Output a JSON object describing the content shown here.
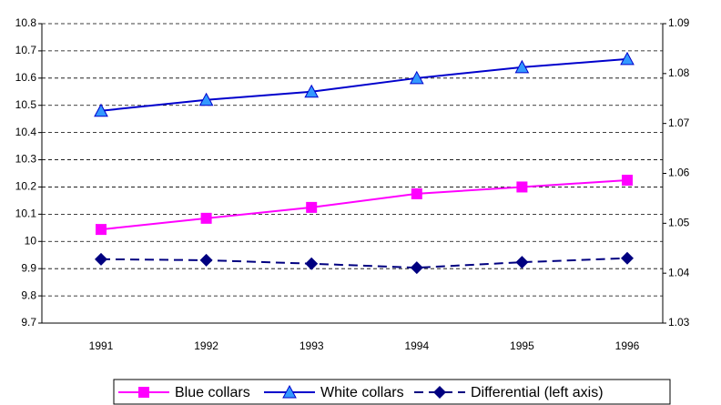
{
  "chart_data": {
    "type": "line",
    "categories": [
      "1991",
      "1992",
      "1993",
      "1994",
      "1995",
      "1996"
    ],
    "series": [
      {
        "name": "Blue collars",
        "color": "#ff00ff",
        "marker": "square",
        "dash": false,
        "values": [
          10.044,
          10.085,
          10.125,
          10.175,
          10.2,
          10.225
        ]
      },
      {
        "name": "White collars",
        "color": "#0000cc",
        "marker": "triangle",
        "dash": false,
        "values": [
          10.48,
          10.52,
          10.55,
          10.6,
          10.64,
          10.67
        ]
      },
      {
        "name": "Differential (left axis)",
        "color": "#000080",
        "marker": "diamond",
        "dash": true,
        "axis": "y2",
        "values": [
          1.0428,
          1.0426,
          1.0419,
          1.0411,
          1.0422,
          1.043
        ]
      }
    ],
    "ylim": [
      9.7,
      10.8
    ],
    "yticks": [
      9.7,
      9.8,
      9.9,
      10,
      10.1,
      10.2,
      10.3,
      10.4,
      10.5,
      10.6,
      10.7,
      10.8
    ],
    "y2lim": [
      1.03,
      1.09
    ],
    "y2ticks": [
      1.03,
      1.04,
      1.05,
      1.06,
      1.07,
      1.08,
      1.09
    ],
    "grid": true
  }
}
